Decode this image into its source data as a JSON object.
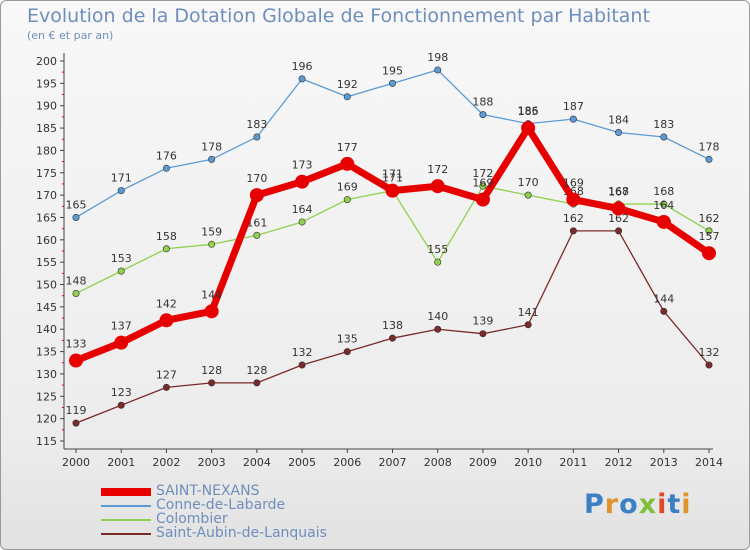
{
  "header": {
    "title": "Evolution de la Dotation Globale de Fonctionnement par Habitant",
    "subtitle": "(en € et par an)"
  },
  "logo": {
    "text": "Proxiti",
    "colors": [
      "#3b7fc4",
      "#e0932a",
      "#3b7fc4",
      "#7fbf3a",
      "#e04a2a",
      "#3b7fc4",
      "#e0932a"
    ]
  },
  "chart_data": {
    "type": "line",
    "title": "Evolution de la Dotation Globale de Fonctionnement par Habitant",
    "subtitle": "(en € et par an)",
    "x": [
      2000,
      2001,
      2002,
      2003,
      2004,
      2005,
      2006,
      2007,
      2008,
      2009,
      2010,
      2011,
      2012,
      2013,
      2014
    ],
    "ylim": [
      115,
      200
    ],
    "yticks": [
      115,
      120,
      125,
      130,
      135,
      140,
      145,
      150,
      155,
      160,
      165,
      170,
      175,
      180,
      185,
      190,
      195,
      200
    ],
    "grid": false,
    "legend_position": "bottom-left",
    "series": [
      {
        "name": "SAINT-NEXANS",
        "color": "#e60000",
        "values": [
          133,
          137,
          142,
          144,
          170,
          173,
          177,
          171,
          172,
          169,
          185,
          169,
          167,
          164,
          157
        ]
      },
      {
        "name": "Conne-de-Labarde",
        "color": "#5b9bd5",
        "values": [
          165,
          171,
          176,
          178,
          183,
          196,
          192,
          195,
          198,
          188,
          186,
          187,
          184,
          183,
          178
        ]
      },
      {
        "name": "Colombier",
        "color": "#8fd14f",
        "values": [
          148,
          153,
          158,
          159,
          161,
          164,
          169,
          171,
          155,
          172,
          170,
          168,
          168,
          168,
          162
        ]
      },
      {
        "name": "Saint-Aubin-de-Lanquais",
        "color": "#7b2a2a",
        "values": [
          119,
          123,
          127,
          128,
          128,
          132,
          135,
          138,
          140,
          139,
          141,
          162,
          162,
          144,
          132
        ]
      }
    ]
  }
}
